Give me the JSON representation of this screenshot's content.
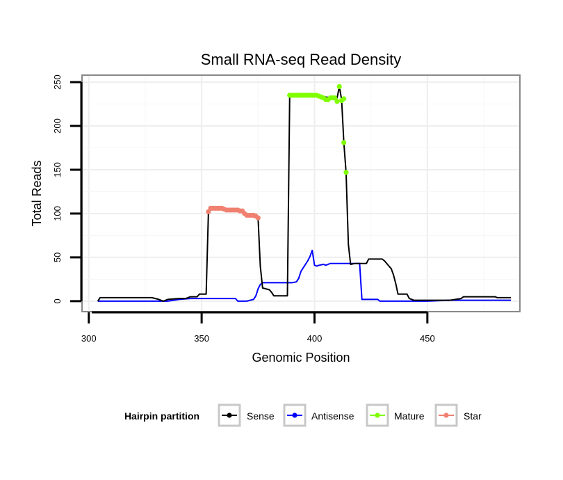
{
  "chart_data": {
    "type": "line",
    "title": "Small RNA-seq Read Density",
    "xlabel": "Genomic Position",
    "ylabel": "Total Reads",
    "xlim": [
      297,
      491
    ],
    "ylim": [
      -12,
      258
    ],
    "x_ticks": [
      300,
      350,
      400,
      450
    ],
    "y_ticks": [
      0,
      50,
      100,
      150,
      200,
      250
    ],
    "grid": true,
    "legend": {
      "title": "Hairpin partition",
      "position": "bottom",
      "entries": [
        {
          "name": "Sense",
          "color": "#000000"
        },
        {
          "name": "Antisense",
          "color": "#0000ff"
        },
        {
          "name": "Mature",
          "color": "#7fff00"
        },
        {
          "name": "Star",
          "color": "#f08070"
        }
      ]
    },
    "series": [
      {
        "name": "Sense",
        "color": "#000000",
        "points": [
          [
            304,
            0
          ],
          [
            305,
            4
          ],
          [
            310,
            4
          ],
          [
            320,
            4
          ],
          [
            328,
            4
          ],
          [
            331,
            2
          ],
          [
            333,
            0
          ],
          [
            335,
            2
          ],
          [
            340,
            3
          ],
          [
            343,
            3
          ],
          [
            345,
            5
          ],
          [
            348,
            5
          ],
          [
            349,
            8
          ],
          [
            352,
            8
          ],
          [
            353,
            102
          ],
          [
            355,
            106
          ],
          [
            360,
            105
          ],
          [
            365,
            104
          ],
          [
            370,
            100
          ],
          [
            374,
            97
          ],
          [
            375,
            95
          ],
          [
            376,
            40
          ],
          [
            377,
            15
          ],
          [
            380,
            13
          ],
          [
            381,
            10
          ],
          [
            382,
            6
          ],
          [
            385,
            6
          ],
          [
            388,
            6
          ],
          [
            389,
            235
          ],
          [
            395,
            235
          ],
          [
            400,
            235
          ],
          [
            405,
            233
          ],
          [
            408,
            232
          ],
          [
            410,
            232
          ],
          [
            411,
            245
          ],
          [
            412,
            230
          ],
          [
            413,
            181
          ],
          [
            414,
            147
          ],
          [
            415,
            65
          ],
          [
            416,
            42
          ],
          [
            418,
            43
          ],
          [
            420,
            43
          ],
          [
            423,
            43
          ],
          [
            424,
            48
          ],
          [
            430,
            48
          ],
          [
            431,
            46
          ],
          [
            433,
            40
          ],
          [
            434,
            37
          ],
          [
            435,
            30
          ],
          [
            436,
            20
          ],
          [
            437,
            8
          ],
          [
            441,
            8
          ],
          [
            442,
            3
          ],
          [
            444,
            1
          ],
          [
            450,
            1
          ],
          [
            455,
            1
          ],
          [
            460,
            1
          ],
          [
            465,
            3
          ],
          [
            466,
            5
          ],
          [
            475,
            5
          ],
          [
            480,
            5
          ],
          [
            481,
            4
          ],
          [
            487,
            4
          ]
        ]
      },
      {
        "name": "Antisense",
        "color": "#0000ff",
        "points": [
          [
            304,
            0
          ],
          [
            310,
            0
          ],
          [
            320,
            0
          ],
          [
            330,
            0
          ],
          [
            335,
            0
          ],
          [
            340,
            2
          ],
          [
            345,
            3
          ],
          [
            350,
            3
          ],
          [
            355,
            3
          ],
          [
            360,
            3
          ],
          [
            365,
            3
          ],
          [
            366,
            0
          ],
          [
            370,
            0
          ],
          [
            373,
            2
          ],
          [
            374,
            6
          ],
          [
            375,
            14
          ],
          [
            376,
            19
          ],
          [
            377,
            21
          ],
          [
            385,
            21
          ],
          [
            390,
            21
          ],
          [
            392,
            22
          ],
          [
            393,
            26
          ],
          [
            394,
            34
          ],
          [
            396,
            42
          ],
          [
            397,
            46
          ],
          [
            398,
            51
          ],
          [
            399,
            58
          ],
          [
            400,
            41
          ],
          [
            401,
            40
          ],
          [
            402,
            41
          ],
          [
            404,
            42
          ],
          [
            405,
            41
          ],
          [
            406,
            42
          ],
          [
            407,
            43
          ],
          [
            415,
            43
          ],
          [
            420,
            43
          ],
          [
            421,
            2
          ],
          [
            428,
            2
          ],
          [
            429,
            0
          ],
          [
            440,
            0
          ],
          [
            450,
            0
          ],
          [
            460,
            1
          ],
          [
            470,
            1
          ],
          [
            480,
            1
          ],
          [
            487,
            1
          ]
        ]
      },
      {
        "name": "Mature",
        "color": "#7fff00",
        "points": [
          [
            389,
            235
          ],
          [
            390,
            235
          ],
          [
            391,
            235
          ],
          [
            392,
            235
          ],
          [
            393,
            235
          ],
          [
            394,
            235
          ],
          [
            395,
            235
          ],
          [
            396,
            235
          ],
          [
            397,
            235
          ],
          [
            398,
            235
          ],
          [
            399,
            235
          ],
          [
            400,
            235
          ],
          [
            401,
            235
          ],
          [
            402,
            234
          ],
          [
            403,
            233
          ],
          [
            404,
            232
          ],
          [
            405,
            230
          ],
          [
            406,
            230
          ],
          [
            407,
            232
          ],
          [
            408,
            232
          ],
          [
            409,
            232
          ],
          [
            410,
            228
          ],
          [
            411,
            245
          ],
          [
            412,
            229
          ],
          [
            413,
            231
          ],
          [
            413,
            181
          ],
          [
            414,
            147
          ]
        ]
      },
      {
        "name": "Star",
        "color": "#f08070",
        "points": [
          [
            353,
            102
          ],
          [
            354,
            106
          ],
          [
            355,
            106
          ],
          [
            356,
            106
          ],
          [
            357,
            106
          ],
          [
            358,
            106
          ],
          [
            359,
            106
          ],
          [
            360,
            105
          ],
          [
            361,
            104
          ],
          [
            362,
            104
          ],
          [
            363,
            104
          ],
          [
            364,
            104
          ],
          [
            365,
            104
          ],
          [
            366,
            104
          ],
          [
            367,
            103
          ],
          [
            368,
            103
          ],
          [
            369,
            100
          ],
          [
            370,
            98
          ],
          [
            371,
            98
          ],
          [
            372,
            98
          ],
          [
            373,
            98
          ],
          [
            374,
            97
          ],
          [
            375,
            95
          ]
        ]
      }
    ]
  }
}
